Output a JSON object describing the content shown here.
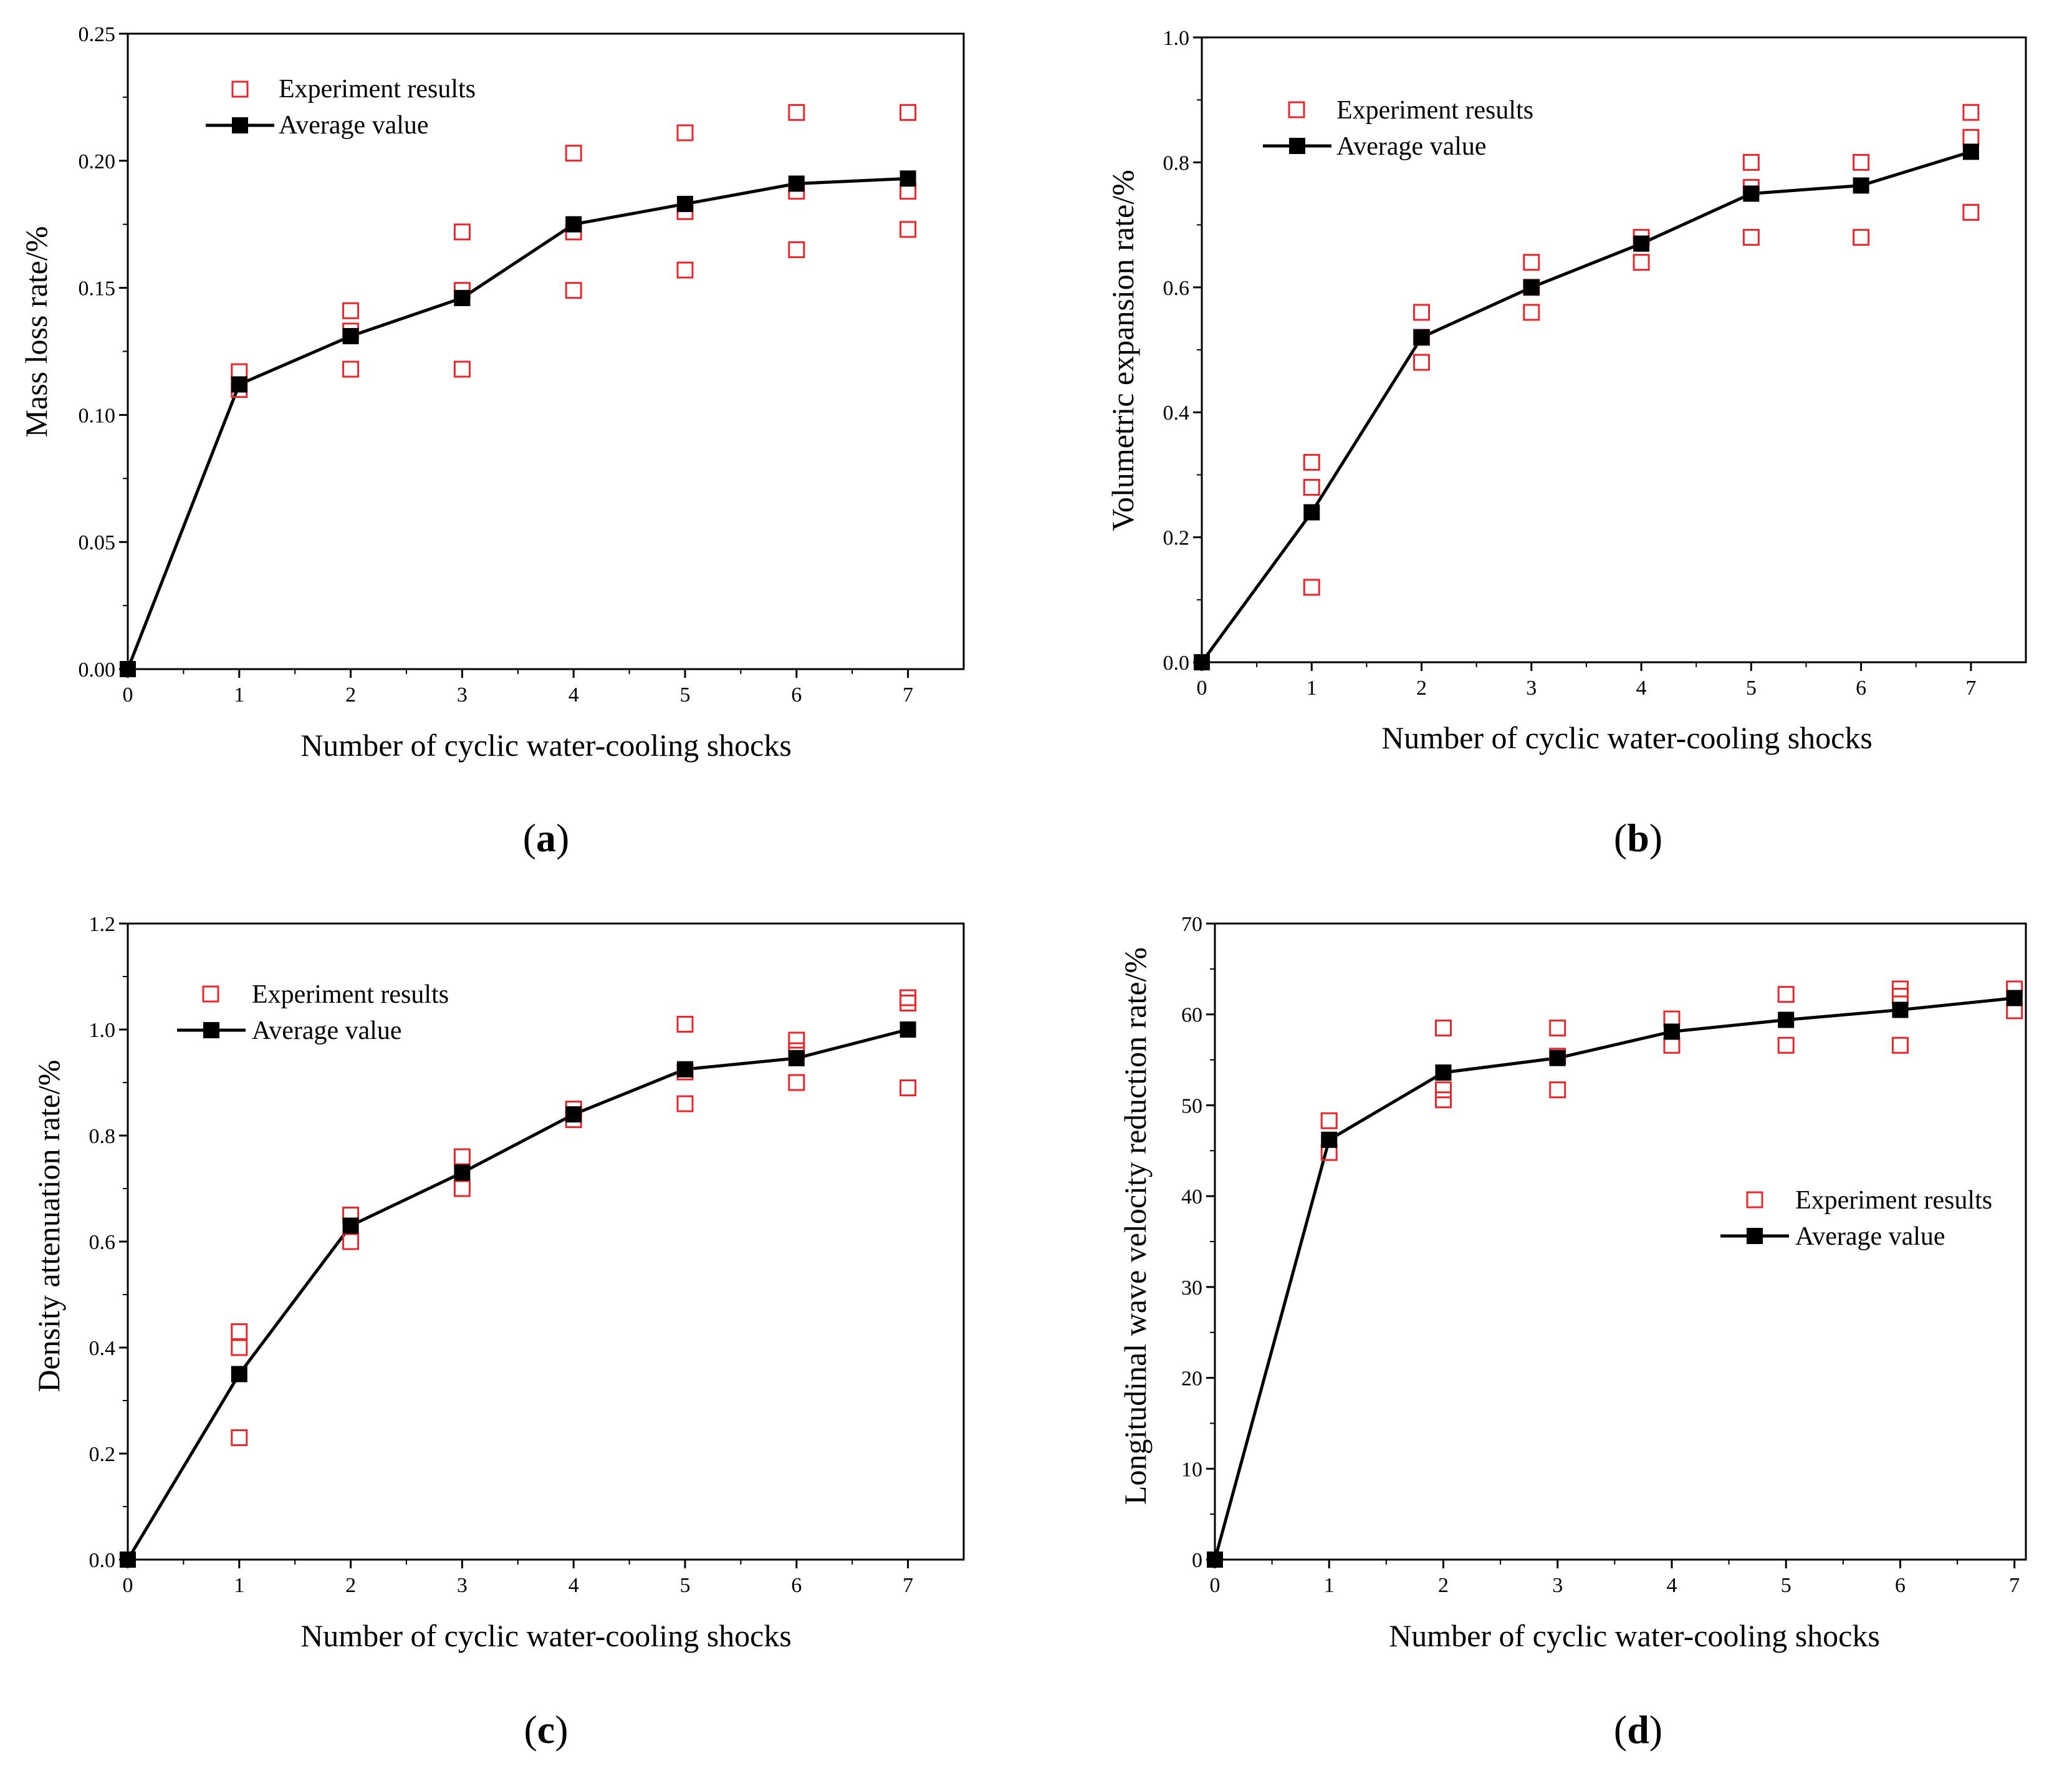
{
  "colors": {
    "experiment": "#e8282d",
    "average": "#000000",
    "axis": "#000000"
  },
  "chart_data": [
    {
      "type": "scatter",
      "panel_label": "(a)",
      "panel_letter": "a",
      "title": "",
      "xlabel": "Number of cyclic water-cooling shocks",
      "ylabel": "Mass loss rate/%",
      "xlim": [
        0,
        7.5
      ],
      "ylim": [
        0,
        0.25
      ],
      "xticks": [
        0,
        1,
        2,
        3,
        4,
        5,
        6,
        7
      ],
      "yticks": [
        0.0,
        0.05,
        0.1,
        0.15,
        0.2,
        0.25
      ],
      "ytick_labels": [
        "0.00",
        "0.05",
        "0.10",
        "0.15",
        "0.20",
        "0.25"
      ],
      "legend": {
        "position": "top-left",
        "entries": [
          "Experiment results",
          "Average value"
        ]
      },
      "series": [
        {
          "name": "Experiment results",
          "marker": "open-square",
          "points": [
            [
              1,
              0.117
            ],
            [
              1,
              0.11
            ],
            [
              2,
              0.141
            ],
            [
              2,
              0.133
            ],
            [
              2,
              0.118
            ],
            [
              3,
              0.172
            ],
            [
              3,
              0.149
            ],
            [
              3,
              0.118
            ],
            [
              4,
              0.203
            ],
            [
              4,
              0.172
            ],
            [
              4,
              0.149
            ],
            [
              5,
              0.211
            ],
            [
              5,
              0.18
            ],
            [
              5,
              0.157
            ],
            [
              6,
              0.219
            ],
            [
              6,
              0.188
            ],
            [
              6,
              0.165
            ],
            [
              7,
              0.219
            ],
            [
              7,
              0.188
            ],
            [
              7,
              0.173
            ]
          ]
        },
        {
          "name": "Average value",
          "marker": "filled-square-line",
          "x": [
            0,
            1,
            2,
            3,
            4,
            5,
            6,
            7
          ],
          "values": [
            0.0,
            0.112,
            0.131,
            0.146,
            0.175,
            0.183,
            0.191,
            0.193
          ]
        }
      ]
    },
    {
      "type": "scatter",
      "panel_label": "(b)",
      "panel_letter": "b",
      "title": "",
      "xlabel": "Number of cyclic water-cooling shocks",
      "ylabel": "Volumetric expansion rate/%",
      "xlim": [
        0,
        7.5
      ],
      "ylim": [
        0,
        1.0
      ],
      "xticks": [
        0,
        1,
        2,
        3,
        4,
        5,
        6,
        7
      ],
      "yticks": [
        0.0,
        0.2,
        0.4,
        0.6,
        0.8,
        1.0
      ],
      "ytick_labels": [
        "0.0",
        "0.2",
        "0.4",
        "0.6",
        "0.8",
        "1.0"
      ],
      "legend": {
        "position": "top-left",
        "entries": [
          "Experiment results",
          "Average value"
        ]
      },
      "series": [
        {
          "name": "Experiment results",
          "marker": "open-square",
          "points": [
            [
              1,
              0.32
            ],
            [
              1,
              0.28
            ],
            [
              1,
              0.12
            ],
            [
              2,
              0.56
            ],
            [
              2,
              0.52
            ],
            [
              2,
              0.48
            ],
            [
              3,
              0.64
            ],
            [
              3,
              0.6
            ],
            [
              3,
              0.56
            ],
            [
              4,
              0.68
            ],
            [
              4,
              0.64
            ],
            [
              5,
              0.8
            ],
            [
              5,
              0.76
            ],
            [
              5,
              0.68
            ],
            [
              6,
              0.8
            ],
            [
              6,
              0.68
            ],
            [
              7,
              0.88
            ],
            [
              7,
              0.84
            ],
            [
              7,
              0.72
            ]
          ]
        },
        {
          "name": "Average value",
          "marker": "filled-square-line",
          "x": [
            0,
            1,
            2,
            3,
            4,
            5,
            6,
            7
          ],
          "values": [
            0.0,
            0.24,
            0.52,
            0.6,
            0.67,
            0.75,
            0.763,
            0.817
          ]
        }
      ]
    },
    {
      "type": "scatter",
      "panel_label": "(c)",
      "panel_letter": "c",
      "title": "",
      "xlabel": "Number of cyclic water-cooling shocks",
      "ylabel": "Density attenuation rate/%",
      "xlim": [
        0,
        7.5
      ],
      "ylim": [
        0,
        1.2
      ],
      "xticks": [
        0,
        1,
        2,
        3,
        4,
        5,
        6,
        7
      ],
      "yticks": [
        0.0,
        0.2,
        0.4,
        0.6,
        0.8,
        1.0,
        1.2
      ],
      "ytick_labels": [
        "0.0",
        "0.2",
        "0.4",
        "0.6",
        "0.8",
        "1.0",
        "1.2"
      ],
      "legend": {
        "position": "top-left",
        "entries": [
          "Experiment results",
          "Average value"
        ]
      },
      "series": [
        {
          "name": "Experiment results",
          "marker": "open-square",
          "points": [
            [
              1,
              0.43
            ],
            [
              1,
              0.4
            ],
            [
              1,
              0.23
            ],
            [
              2,
              0.65
            ],
            [
              2,
              0.6
            ],
            [
              3,
              0.76
            ],
            [
              3,
              0.7
            ],
            [
              4,
              0.85
            ],
            [
              4,
              0.83
            ],
            [
              5,
              1.01
            ],
            [
              5,
              0.92
            ],
            [
              5,
              0.86
            ],
            [
              6,
              0.98
            ],
            [
              6,
              0.96
            ],
            [
              6,
              0.9
            ],
            [
              7,
              1.06
            ],
            [
              7,
              1.05
            ],
            [
              7,
              0.89
            ]
          ]
        },
        {
          "name": "Average value",
          "marker": "filled-square-line",
          "x": [
            0,
            1,
            2,
            3,
            4,
            5,
            6,
            7
          ],
          "values": [
            0.0,
            0.35,
            0.63,
            0.73,
            0.84,
            0.925,
            0.946,
            1.0
          ]
        }
      ]
    },
    {
      "type": "scatter",
      "panel_label": "(d)",
      "panel_letter": "d",
      "title": "",
      "xlabel": "Number of cyclic water-cooling shocks",
      "ylabel": "Longitudinal wave velocity reduction rate/%",
      "xlim": [
        0,
        7.1
      ],
      "ylim": [
        0,
        70
      ],
      "xticks": [
        0,
        1,
        2,
        3,
        4,
        5,
        6,
        7
      ],
      "yticks": [
        0,
        10,
        20,
        30,
        40,
        50,
        60,
        70
      ],
      "ytick_labels": [
        "0",
        "10",
        "20",
        "30",
        "40",
        "50",
        "60",
        "70"
      ],
      "legend": {
        "position": "middle-right",
        "entries": [
          "Experiment results",
          "Average value"
        ]
      },
      "series": [
        {
          "name": "Experiment results",
          "marker": "open-square",
          "points": [
            [
              1,
              48.3
            ],
            [
              1,
              44.8
            ],
            [
              2,
              58.5
            ],
            [
              2,
              51.7
            ],
            [
              2,
              50.6
            ],
            [
              3,
              58.5
            ],
            [
              3,
              55.4
            ],
            [
              3,
              51.7
            ],
            [
              4,
              59.5
            ],
            [
              4,
              56.6
            ],
            [
              5,
              62.2
            ],
            [
              5,
              56.6
            ],
            [
              6,
              62.8
            ],
            [
              6,
              62.0
            ],
            [
              6,
              56.6
            ],
            [
              7,
              62.8
            ],
            [
              7,
              60.4
            ]
          ]
        },
        {
          "name": "Average value",
          "marker": "filled-square-line",
          "x": [
            0,
            1,
            2,
            3,
            4,
            5,
            6,
            7
          ],
          "values": [
            0.0,
            46.2,
            53.6,
            55.2,
            58.1,
            59.4,
            60.5,
            61.8
          ]
        }
      ]
    }
  ]
}
